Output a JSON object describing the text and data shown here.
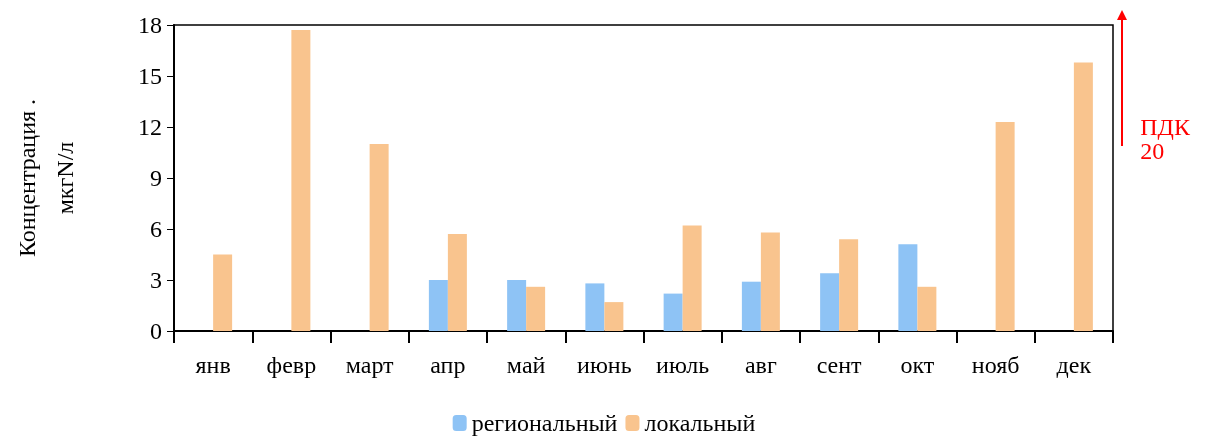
{
  "chart_data": {
    "type": "bar",
    "ylabel": "Концентрация .\nмкгN/л",
    "categories": [
      "янв",
      "февр",
      "март",
      "апр",
      "май",
      "июнь",
      "июль",
      "авг",
      "сент",
      "окт",
      "нояб",
      "дек"
    ],
    "series": [
      {
        "name": "региональный",
        "color": "#8ec3f5",
        "values": [
          null,
          null,
          null,
          3.0,
          3.0,
          2.8,
          2.2,
          2.9,
          3.4,
          5.1,
          null,
          null
        ]
      },
      {
        "name": "локальный",
        "color": "#f9c48e",
        "values": [
          4.5,
          17.7,
          11.0,
          5.7,
          2.6,
          1.7,
          6.2,
          5.8,
          5.4,
          2.6,
          12.3,
          15.8
        ]
      }
    ],
    "ylim": [
      0,
      18
    ],
    "yticks": [
      0,
      3,
      6,
      9,
      12,
      15,
      18
    ],
    "grid": false,
    "legend": "bottom",
    "annotations": [
      "ПДК\n20"
    ]
  }
}
